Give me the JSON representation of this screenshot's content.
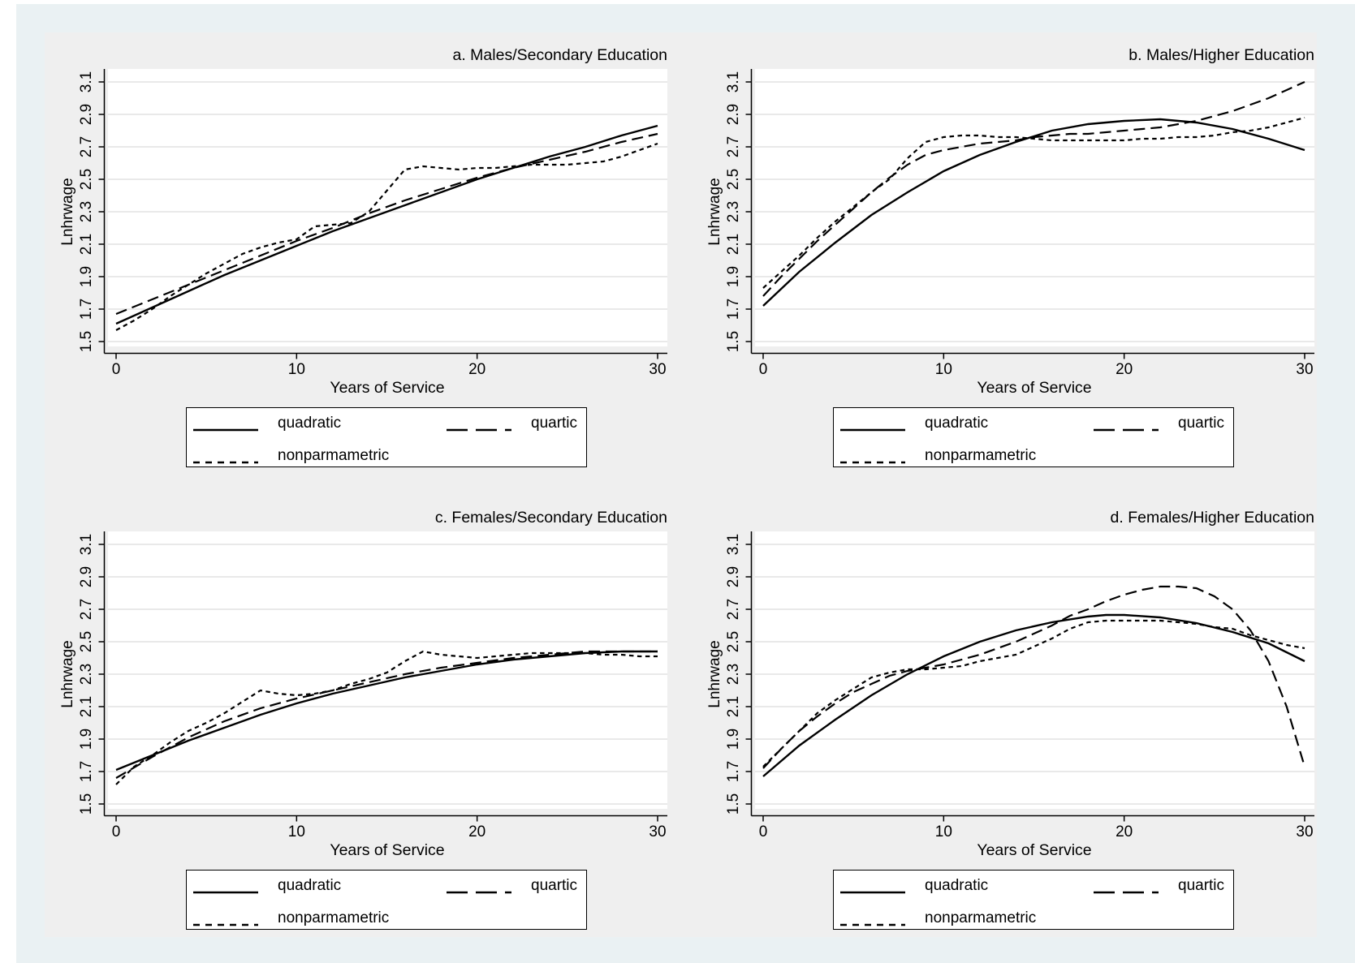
{
  "figure": {
    "canvas_color": "#eaf1f3",
    "region_color": "#efefef",
    "plot_color": "#ffffff",
    "gridline_color": "#e2e2e2",
    "line_color": "#000000"
  },
  "chart_data": [
    {
      "type": "line",
      "title": "a. Males/Secondary Education",
      "xlabel": "Years of Service",
      "ylabel": "Lnhrwage",
      "xticks": [
        0,
        10,
        20,
        30
      ],
      "yticks": [
        1.5,
        1.7,
        1.9,
        2.1,
        2.3,
        2.5,
        2.7,
        2.9,
        3.1
      ],
      "xlim": [
        0,
        30
      ],
      "ylim": [
        1.5,
        3.1
      ],
      "grid": true,
      "legend_position": "below",
      "series": [
        {
          "name": "quadratic",
          "style": "solid",
          "x": [
            0,
            2,
            4,
            6,
            8,
            10,
            12,
            14,
            16,
            18,
            20,
            22,
            24,
            26,
            28,
            30
          ],
          "y": [
            1.61,
            1.71,
            1.81,
            1.91,
            2.0,
            2.09,
            2.18,
            2.26,
            2.34,
            2.42,
            2.5,
            2.57,
            2.64,
            2.7,
            2.77,
            2.83
          ]
        },
        {
          "name": "quartic",
          "style": "longdash",
          "x": [
            0,
            2,
            4,
            6,
            8,
            10,
            12,
            14,
            16,
            18,
            20,
            22,
            24,
            26,
            28,
            30
          ],
          "y": [
            1.67,
            1.76,
            1.85,
            1.94,
            2.03,
            2.12,
            2.2,
            2.29,
            2.37,
            2.44,
            2.51,
            2.57,
            2.62,
            2.67,
            2.73,
            2.78
          ]
        },
        {
          "name": "nonparmametric",
          "style": "shortdash",
          "x": [
            0,
            1,
            2,
            3,
            4,
            5,
            6,
            7,
            8,
            9,
            10,
            11,
            12,
            13,
            14,
            15,
            16,
            17,
            18,
            19,
            20,
            21,
            22,
            23,
            24,
            25,
            26,
            27,
            28,
            29,
            30
          ],
          "y": [
            1.57,
            1.63,
            1.7,
            1.78,
            1.85,
            1.92,
            1.98,
            2.04,
            2.08,
            2.11,
            2.13,
            2.21,
            2.22,
            2.23,
            2.3,
            2.43,
            2.56,
            2.58,
            2.57,
            2.56,
            2.57,
            2.57,
            2.58,
            2.59,
            2.59,
            2.59,
            2.6,
            2.61,
            2.64,
            2.68,
            2.72
          ]
        }
      ]
    },
    {
      "type": "line",
      "title": "b. Males/Higher Education",
      "xlabel": "Years of Service",
      "ylabel": "Lnhrwage",
      "xticks": [
        0,
        10,
        20,
        30
      ],
      "yticks": [
        1.5,
        1.7,
        1.9,
        2.1,
        2.3,
        2.5,
        2.7,
        2.9,
        3.1
      ],
      "xlim": [
        0,
        30
      ],
      "ylim": [
        1.5,
        3.1
      ],
      "grid": true,
      "legend_position": "below",
      "series": [
        {
          "name": "quadratic",
          "style": "solid",
          "x": [
            0,
            2,
            4,
            6,
            8,
            10,
            12,
            14,
            16,
            18,
            20,
            22,
            24,
            26,
            28,
            30
          ],
          "y": [
            1.72,
            1.93,
            2.11,
            2.28,
            2.42,
            2.55,
            2.65,
            2.73,
            2.8,
            2.84,
            2.86,
            2.87,
            2.85,
            2.81,
            2.75,
            2.68
          ]
        },
        {
          "name": "quartic",
          "style": "longdash",
          "x": [
            0,
            1,
            2,
            3,
            4,
            5,
            6,
            7,
            8,
            9,
            10,
            11,
            12,
            13,
            14,
            15,
            16,
            17,
            18,
            19,
            20,
            21,
            22,
            23,
            24,
            25,
            26,
            27,
            28,
            29,
            30
          ],
          "y": [
            1.78,
            1.9,
            2.01,
            2.12,
            2.22,
            2.32,
            2.42,
            2.51,
            2.59,
            2.65,
            2.68,
            2.7,
            2.72,
            2.73,
            2.74,
            2.76,
            2.77,
            2.78,
            2.78,
            2.79,
            2.8,
            2.81,
            2.82,
            2.84,
            2.86,
            2.89,
            2.92,
            2.96,
            3.0,
            3.05,
            3.1
          ]
        },
        {
          "name": "nonparmametric",
          "style": "shortdash",
          "x": [
            0,
            1,
            2,
            3,
            4,
            5,
            6,
            7,
            8,
            9,
            10,
            11,
            12,
            13,
            14,
            15,
            16,
            17,
            18,
            19,
            20,
            21,
            22,
            23,
            24,
            25,
            26,
            27,
            28,
            29,
            30
          ],
          "y": [
            1.83,
            1.93,
            2.03,
            2.14,
            2.24,
            2.33,
            2.42,
            2.5,
            2.63,
            2.73,
            2.76,
            2.77,
            2.77,
            2.76,
            2.76,
            2.75,
            2.74,
            2.74,
            2.74,
            2.74,
            2.74,
            2.75,
            2.75,
            2.76,
            2.76,
            2.77,
            2.79,
            2.8,
            2.82,
            2.85,
            2.88
          ]
        }
      ]
    },
    {
      "type": "line",
      "title": "c. Females/Secondary Education",
      "xlabel": "Years of Service",
      "ylabel": "Lnhrwage",
      "xticks": [
        0,
        10,
        20,
        30
      ],
      "yticks": [
        1.5,
        1.7,
        1.9,
        2.1,
        2.3,
        2.5,
        2.7,
        2.9,
        3.1
      ],
      "xlim": [
        0,
        30
      ],
      "ylim": [
        1.5,
        3.1
      ],
      "grid": true,
      "legend_position": "below",
      "series": [
        {
          "name": "quadratic",
          "style": "solid",
          "x": [
            0,
            2,
            4,
            6,
            8,
            10,
            12,
            14,
            16,
            18,
            20,
            22,
            24,
            26,
            28,
            30
          ],
          "y": [
            1.71,
            1.8,
            1.89,
            1.97,
            2.05,
            2.12,
            2.18,
            2.23,
            2.28,
            2.32,
            2.36,
            2.39,
            2.41,
            2.43,
            2.44,
            2.44
          ]
        },
        {
          "name": "quartic",
          "style": "longdash",
          "x": [
            0,
            2,
            4,
            6,
            8,
            10,
            12,
            14,
            16,
            18,
            20,
            22,
            24,
            26,
            28,
            30
          ],
          "y": [
            1.66,
            1.79,
            1.91,
            2.01,
            2.09,
            2.15,
            2.2,
            2.25,
            2.3,
            2.34,
            2.37,
            2.4,
            2.42,
            2.44,
            2.44,
            2.44
          ]
        },
        {
          "name": "nonparmametric",
          "style": "shortdash",
          "x": [
            0,
            1,
            2,
            3,
            4,
            5,
            6,
            7,
            8,
            9,
            10,
            11,
            12,
            13,
            14,
            15,
            16,
            17,
            18,
            19,
            20,
            21,
            22,
            23,
            24,
            25,
            26,
            27,
            28,
            29,
            30
          ],
          "y": [
            1.62,
            1.73,
            1.8,
            1.88,
            1.95,
            2.0,
            2.06,
            2.13,
            2.2,
            2.18,
            2.17,
            2.18,
            2.2,
            2.24,
            2.27,
            2.31,
            2.38,
            2.44,
            2.42,
            2.41,
            2.4,
            2.41,
            2.42,
            2.43,
            2.43,
            2.43,
            2.43,
            2.42,
            2.42,
            2.41,
            2.41
          ]
        }
      ]
    },
    {
      "type": "line",
      "title": "d. Females/Higher Education",
      "xlabel": "Years of Service",
      "ylabel": "Lnhrwage",
      "xticks": [
        0,
        10,
        20,
        30
      ],
      "yticks": [
        1.5,
        1.7,
        1.9,
        2.1,
        2.3,
        2.5,
        2.7,
        2.9,
        3.1
      ],
      "xlim": [
        0,
        30
      ],
      "ylim": [
        1.5,
        3.1
      ],
      "grid": true,
      "legend_position": "below",
      "series": [
        {
          "name": "quadratic",
          "style": "solid",
          "x": [
            0,
            2,
            4,
            6,
            8,
            10,
            12,
            14,
            16,
            18,
            19,
            20,
            22,
            24,
            26,
            28,
            30
          ],
          "y": [
            1.67,
            1.86,
            2.02,
            2.17,
            2.3,
            2.41,
            2.5,
            2.57,
            2.62,
            2.655,
            2.665,
            2.665,
            2.65,
            2.615,
            2.56,
            2.49,
            2.38
          ]
        },
        {
          "name": "quartic",
          "style": "longdash",
          "x": [
            0,
            1,
            2,
            3,
            4,
            5,
            6,
            7,
            8,
            9,
            10,
            11,
            12,
            13,
            14,
            15,
            16,
            17,
            18,
            19,
            20,
            21,
            22,
            23,
            24,
            25,
            26,
            27,
            28,
            29,
            30
          ],
          "y": [
            1.72,
            1.84,
            1.95,
            2.04,
            2.12,
            2.19,
            2.24,
            2.29,
            2.32,
            2.34,
            2.36,
            2.39,
            2.42,
            2.46,
            2.5,
            2.55,
            2.6,
            2.66,
            2.7,
            2.75,
            2.79,
            2.82,
            2.84,
            2.84,
            2.83,
            2.78,
            2.7,
            2.57,
            2.38,
            2.1,
            1.73
          ]
        },
        {
          "name": "nonparmametric",
          "style": "shortdash",
          "x": [
            0,
            1,
            2,
            3,
            4,
            5,
            6,
            7,
            8,
            9,
            10,
            11,
            12,
            13,
            14,
            15,
            16,
            17,
            18,
            19,
            20,
            21,
            22,
            23,
            24,
            25,
            26,
            27,
            28,
            29,
            30
          ],
          "y": [
            1.73,
            1.84,
            1.95,
            2.06,
            2.14,
            2.21,
            2.28,
            2.31,
            2.33,
            2.33,
            2.34,
            2.35,
            2.38,
            2.4,
            2.42,
            2.47,
            2.52,
            2.58,
            2.62,
            2.63,
            2.63,
            2.63,
            2.63,
            2.62,
            2.61,
            2.59,
            2.58,
            2.54,
            2.51,
            2.48,
            2.46
          ]
        }
      ]
    }
  ]
}
